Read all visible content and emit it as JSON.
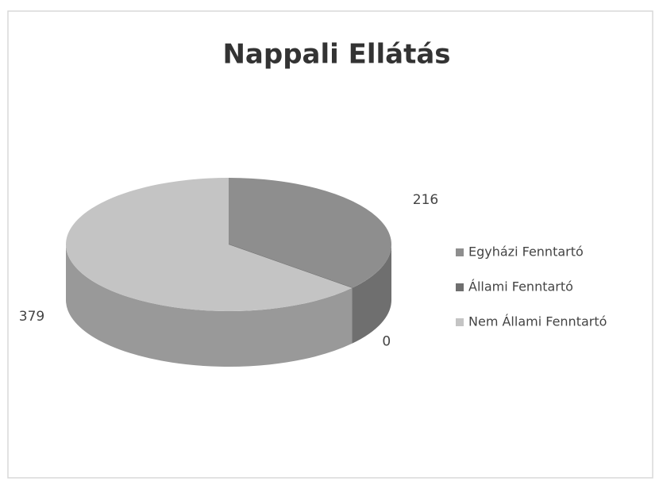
{
  "chart_data": {
    "type": "pie",
    "title": "Nappali Ellátás",
    "categories": [
      "Egyházi Fenntartó",
      "Állami Fenntartó",
      "Nem Állami Fenntartó"
    ],
    "values": [
      216,
      0,
      379
    ],
    "colors": [
      "#8e8e8e",
      "#6f6f6f",
      "#c4c4c4"
    ],
    "legend": "right"
  }
}
